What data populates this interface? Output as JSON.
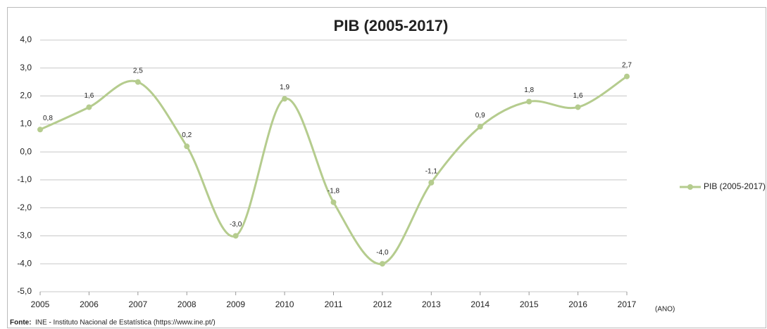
{
  "chart_data": {
    "type": "line",
    "title": "PIB (2005-2017)",
    "x_label": "(ANO)",
    "source_label": "Fonte:",
    "source": "INE - Instituto Nacional de Estatística (https://www.ine.pt/)",
    "x": [
      2005,
      2006,
      2007,
      2008,
      2009,
      2010,
      2011,
      2012,
      2013,
      2014,
      2015,
      2016,
      2017
    ],
    "xlim": [
      2005,
      2017
    ],
    "xticks": [
      2005,
      2006,
      2007,
      2008,
      2009,
      2010,
      2011,
      2012,
      2013,
      2014,
      2015,
      2016,
      2017
    ],
    "series": [
      {
        "name": "PIB (2005-2017)",
        "color": "#b5cc8e",
        "values": [
          0.8,
          1.6,
          2.5,
          0.2,
          -3.0,
          1.9,
          -1.8,
          -4.0,
          -1.1,
          0.9,
          1.8,
          1.6,
          2.7
        ],
        "value_labels": [
          "0,8",
          "1,6",
          "2,5",
          "0,2",
          "-3,0",
          "1,9",
          "-1,8",
          "-4,0",
          "-1,1",
          "0,9",
          "1,8",
          "1,6",
          "2,7"
        ]
      }
    ],
    "ylim": [
      -5,
      4
    ],
    "yticks": [
      {
        "value": -5,
        "label": "-5,0"
      },
      {
        "value": -4,
        "label": "-4,0"
      },
      {
        "value": -3,
        "label": "-3,0"
      },
      {
        "value": -2,
        "label": "-2,0"
      },
      {
        "value": -1,
        "label": "-1,0"
      },
      {
        "value": 0,
        "label": "0,0"
      },
      {
        "value": 1,
        "label": "1,0"
      },
      {
        "value": 2,
        "label": "2,0"
      },
      {
        "value": 3,
        "label": "3,0"
      },
      {
        "value": 4,
        "label": "4,0"
      }
    ],
    "grid": true,
    "smooth": true,
    "legend": "right"
  }
}
